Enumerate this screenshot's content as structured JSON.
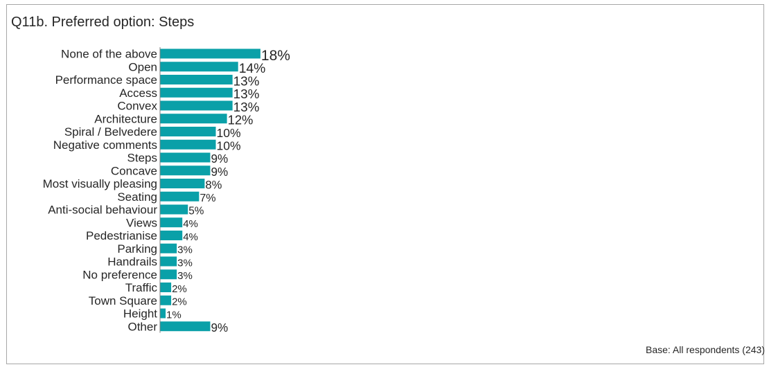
{
  "chart_data": {
    "type": "bar",
    "orientation": "horizontal",
    "title": "Q11b. Preferred option: Steps",
    "categories": [
      "None of the above",
      "Open",
      "Performance space",
      "Access",
      "Convex",
      "Architecture",
      "Spiral / Belvedere",
      "Negative comments",
      "Steps",
      "Concave",
      "Most visually pleasing",
      "Seating",
      "Anti-social behaviour",
      "Views",
      "Pedestrianise",
      "Parking",
      "Handrails",
      "No preference",
      "Traffic",
      "Town Square",
      "Height",
      "Other"
    ],
    "values": [
      18,
      14,
      13,
      13,
      13,
      12,
      10,
      10,
      9,
      9,
      8,
      7,
      5,
      4,
      4,
      3,
      3,
      3,
      2,
      2,
      1,
      9
    ],
    "value_labels": [
      "18%",
      "14%",
      "13%",
      "13%",
      "13%",
      "12%",
      "10%",
      "10%",
      "9%",
      "9%",
      "8%",
      "7%",
      "5%",
      "4%",
      "4%",
      "3%",
      "3%",
      "3%",
      "2%",
      "2%",
      "1%",
      "9%"
    ],
    "unit": "%",
    "bar_color": "#0aa0a8",
    "text_color": "#262626",
    "axis_color": "#7f7f7f",
    "grid": false,
    "legend": "none",
    "xlim": [
      0,
      100
    ]
  },
  "footnote": "Base: All respondents (243)"
}
